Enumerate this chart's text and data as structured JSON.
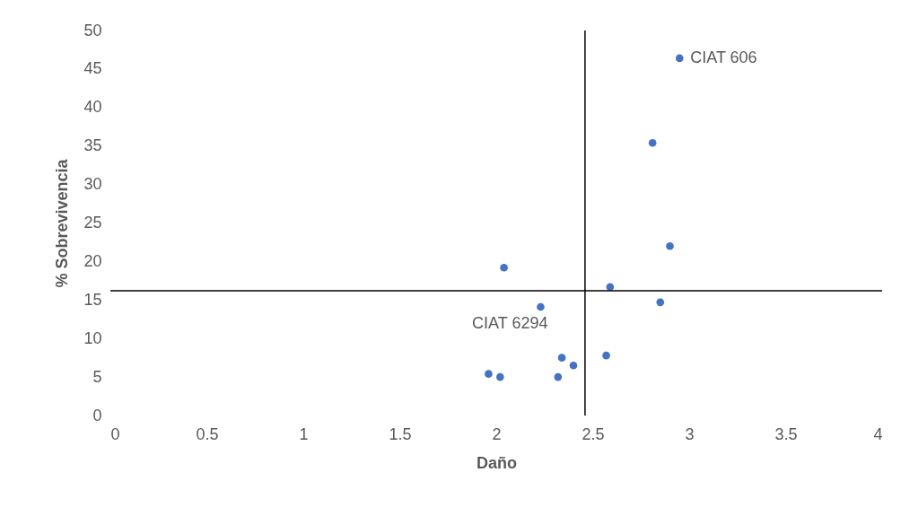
{
  "chart_data": {
    "type": "scatter",
    "xlabel": "Daño",
    "ylabel": "% Sobrevivencia",
    "x": [
      2.95,
      2.81,
      2.9,
      2.04,
      2.59,
      2.85,
      2.23,
      2.34,
      2.4,
      2.57,
      1.96,
      2.02,
      2.32
    ],
    "series": [
      {
        "color": "#4472c4",
        "values": [
          46.4,
          35.4,
          22.0,
          19.2,
          16.7,
          14.7,
          14.1,
          7.5,
          6.5,
          7.8,
          5.4,
          5.0,
          5.0
        ]
      }
    ],
    "xlim": [
      0,
      4
    ],
    "xticks": [
      0,
      0.5,
      1,
      1.5,
      2,
      2.5,
      3,
      3.5,
      4
    ],
    "ylim": [
      0,
      50
    ],
    "yticks": [
      0,
      5,
      10,
      15,
      20,
      25,
      30,
      35,
      40,
      45,
      50
    ],
    "ref_lines": [
      {
        "axis": "x",
        "value": 2.46,
        "color": "#000000"
      },
      {
        "axis": "y",
        "value": 16.2,
        "color": "#000000"
      }
    ],
    "annotations": [
      {
        "text": "CIAT 606",
        "x": 2.95,
        "y": 46.4
      },
      {
        "text": "CIAT 6294",
        "x": 2.23,
        "y": 14.1
      }
    ],
    "marker": "circle",
    "grid": false
  }
}
